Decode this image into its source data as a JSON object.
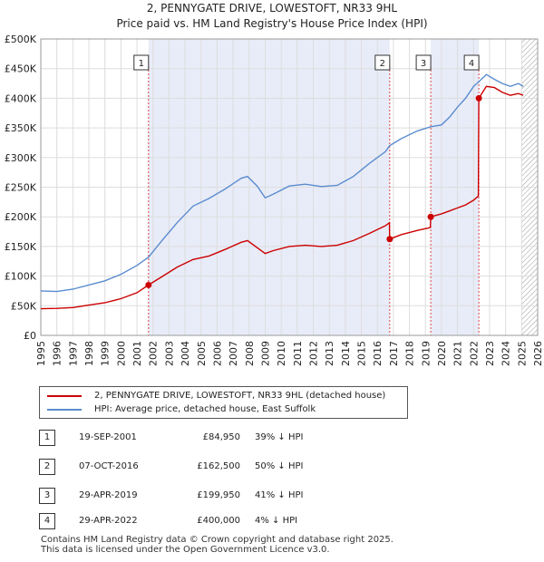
{
  "header": {
    "title_line1": "2, PENNYGATE DRIVE, LOWESTOFT, NR33 9HL",
    "title_line2": "Price paid vs. HM Land Registry's House Price Index (HPI)"
  },
  "chart_data": {
    "type": "line",
    "xlim": [
      1995,
      2026
    ],
    "ylim": [
      0,
      500000
    ],
    "x_ticks": [
      1995,
      1996,
      1997,
      1998,
      1999,
      2000,
      2001,
      2002,
      2003,
      2004,
      2005,
      2006,
      2007,
      2008,
      2009,
      2010,
      2011,
      2012,
      2013,
      2014,
      2015,
      2016,
      2017,
      2018,
      2019,
      2020,
      2021,
      2022,
      2023,
      2024,
      2025,
      2026
    ],
    "y_ticks": [
      {
        "value": 0,
        "label": "£0"
      },
      {
        "value": 50000,
        "label": "£50K"
      },
      {
        "value": 100000,
        "label": "£100K"
      },
      {
        "value": 150000,
        "label": "£150K"
      },
      {
        "value": 200000,
        "label": "£200K"
      },
      {
        "value": 250000,
        "label": "£250K"
      },
      {
        "value": 300000,
        "label": "£300K"
      },
      {
        "value": 350000,
        "label": "£350K"
      },
      {
        "value": 400000,
        "label": "£400K"
      },
      {
        "value": 450000,
        "label": "£450K"
      },
      {
        "value": 500000,
        "label": "£500K"
      }
    ],
    "grid": true,
    "series": [
      {
        "name": "2, PENNYGATE DRIVE, LOWESTOFT, NR33 9HL (detached house)",
        "color": "#cc0000",
        "points": [
          [
            1995.0,
            45000
          ],
          [
            1996.0,
            45500
          ],
          [
            1997.0,
            47000
          ],
          [
            1998.0,
            51000
          ],
          [
            1999.0,
            55000
          ],
          [
            2000.0,
            62000
          ],
          [
            2001.0,
            72000
          ],
          [
            2001.72,
            84950
          ],
          [
            2002.5,
            98000
          ],
          [
            2003.5,
            115000
          ],
          [
            2004.5,
            128000
          ],
          [
            2005.5,
            134000
          ],
          [
            2006.5,
            145000
          ],
          [
            2007.5,
            157000
          ],
          [
            2007.9,
            160000
          ],
          [
            2008.5,
            148000
          ],
          [
            2009.0,
            138000
          ],
          [
            2009.5,
            143000
          ],
          [
            2010.5,
            150000
          ],
          [
            2011.5,
            152000
          ],
          [
            2012.5,
            150000
          ],
          [
            2013.5,
            152000
          ],
          [
            2014.5,
            160000
          ],
          [
            2015.5,
            172000
          ],
          [
            2016.5,
            185000
          ],
          [
            2016.75,
            190000
          ],
          [
            2016.77,
            162500
          ],
          [
            2017.5,
            170000
          ],
          [
            2018.5,
            177000
          ],
          [
            2019.3,
            182000
          ],
          [
            2019.33,
            199950
          ],
          [
            2020.0,
            205000
          ],
          [
            2020.5,
            210000
          ],
          [
            2021.0,
            215000
          ],
          [
            2021.5,
            220000
          ],
          [
            2022.0,
            228000
          ],
          [
            2022.3,
            235000
          ],
          [
            2022.33,
            400000
          ],
          [
            2022.8,
            420000
          ],
          [
            2023.3,
            418000
          ],
          [
            2023.8,
            410000
          ],
          [
            2024.3,
            405000
          ],
          [
            2024.8,
            408000
          ],
          [
            2025.1,
            405000
          ]
        ]
      },
      {
        "name": "HPI: Average price, detached house, East Suffolk",
        "color": "#5b8ccf",
        "points": [
          [
            1995.0,
            75000
          ],
          [
            1996.0,
            74000
          ],
          [
            1997.0,
            78000
          ],
          [
            1998.0,
            85000
          ],
          [
            1999.0,
            92000
          ],
          [
            2000.0,
            103000
          ],
          [
            2001.0,
            118000
          ],
          [
            2001.72,
            132000
          ],
          [
            2002.5,
            158000
          ],
          [
            2003.5,
            190000
          ],
          [
            2004.5,
            218000
          ],
          [
            2005.5,
            231000
          ],
          [
            2006.5,
            247000
          ],
          [
            2007.5,
            265000
          ],
          [
            2007.9,
            268000
          ],
          [
            2008.5,
            252000
          ],
          [
            2009.0,
            232000
          ],
          [
            2009.5,
            238000
          ],
          [
            2010.5,
            252000
          ],
          [
            2011.5,
            255000
          ],
          [
            2012.5,
            251000
          ],
          [
            2013.5,
            253000
          ],
          [
            2014.5,
            268000
          ],
          [
            2015.5,
            290000
          ],
          [
            2016.5,
            310000
          ],
          [
            2016.77,
            320000
          ],
          [
            2017.5,
            332000
          ],
          [
            2018.5,
            345000
          ],
          [
            2019.33,
            352000
          ],
          [
            2020.0,
            355000
          ],
          [
            2020.5,
            368000
          ],
          [
            2021.0,
            385000
          ],
          [
            2021.5,
            400000
          ],
          [
            2022.0,
            420000
          ],
          [
            2022.33,
            428000
          ],
          [
            2022.8,
            440000
          ],
          [
            2023.3,
            432000
          ],
          [
            2023.8,
            425000
          ],
          [
            2024.3,
            420000
          ],
          [
            2024.8,
            425000
          ],
          [
            2025.1,
            420000
          ]
        ]
      }
    ],
    "sales": [
      {
        "label": "1",
        "year": 2001.72,
        "price": 84950
      },
      {
        "label": "2",
        "year": 2016.77,
        "price": 162500
      },
      {
        "label": "3",
        "year": 2019.33,
        "price": 199950
      },
      {
        "label": "4",
        "year": 2022.33,
        "price": 400000
      }
    ],
    "shaded_ranges": [
      [
        2001.72,
        2016.77
      ],
      [
        2019.33,
        2022.33
      ]
    ],
    "hatched_range": [
      2025.0,
      2026.0
    ]
  },
  "legend": {
    "series1_label": "2, PENNYGATE DRIVE, LOWESTOFT, NR33 9HL (detached house)",
    "series2_label": "HPI: Average price, detached house, East Suffolk",
    "series1_color": "#cc0000",
    "series2_color": "#5b8ccf"
  },
  "sales_table": [
    {
      "num": "1",
      "date": "19-SEP-2001",
      "price": "£84,950",
      "hpi": "39% ↓ HPI"
    },
    {
      "num": "2",
      "date": "07-OCT-2016",
      "price": "£162,500",
      "hpi": "50% ↓ HPI"
    },
    {
      "num": "3",
      "date": "29-APR-2019",
      "price": "£199,950",
      "hpi": "41% ↓ HPI"
    },
    {
      "num": "4",
      "date": "29-APR-2022",
      "price": "£400,000",
      "hpi": "4% ↓ HPI"
    }
  ],
  "footer": {
    "line1": "Contains HM Land Registry data © Crown copyright and database right 2025.",
    "line2": "This data is licensed under the Open Government Licence v3.0."
  }
}
